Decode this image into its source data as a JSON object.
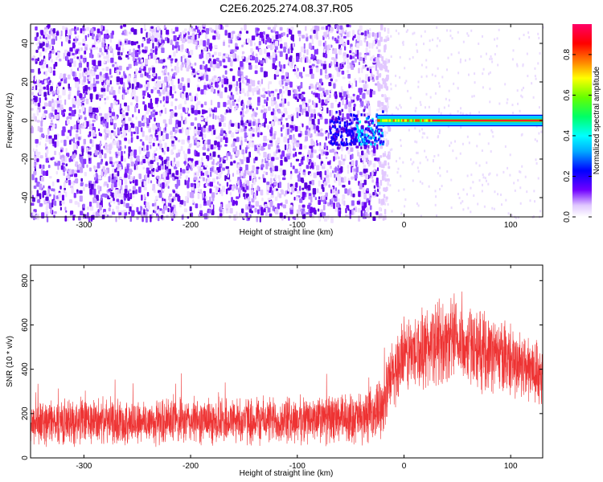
{
  "chart_data": [
    {
      "type": "heatmap",
      "title": "C2E6.2025.274.08.37.R05",
      "xlabel": "Height of straight line (km)",
      "ylabel": "Frequency (Hz)",
      "xlim": [
        -350,
        130
      ],
      "ylim": [
        -50,
        50
      ],
      "xticks": [
        -300,
        -200,
        -100,
        0,
        100
      ],
      "yticks": [
        -40,
        -20,
        0,
        20,
        40
      ],
      "xtick_labels": [
        "-300",
        "-200",
        "-100",
        "0",
        "100"
      ],
      "ytick_labels": [
        "-40",
        "-20",
        "0",
        "20",
        "40"
      ],
      "colorbar": {
        "label": "Normalized spectral amplitude",
        "range": [
          0.0,
          0.95
        ],
        "ticks": [
          0.0,
          0.2,
          0.4,
          0.6,
          0.8
        ],
        "tick_labels": [
          "0.0",
          "0.2",
          "0.4",
          "0.6",
          "0.8"
        ],
        "colors": [
          "#ffffff",
          "#6600cc",
          "#0000ff",
          "#00ffff",
          "#00ff00",
          "#ffff00",
          "#ff8800",
          "#ff0000",
          "#ff0066"
        ]
      },
      "features": [
        {
          "description": "broadband noise",
          "x_range": [
            -350,
            -25
          ],
          "freq_range": [
            -50,
            50
          ],
          "amplitude": 0.1
        },
        {
          "description": "transition burst",
          "x_range": [
            -70,
            -20
          ],
          "freq_range": [
            -12,
            8
          ],
          "amplitude": 0.3
        },
        {
          "description": "narrow carrier",
          "x_range": [
            -25,
            130
          ],
          "freq": 0,
          "freq_halfwidth": 3,
          "amplitude": 0.9
        }
      ]
    },
    {
      "type": "line",
      "xlabel": "Height of straight line (km)",
      "ylabel": "SNR (10 * v/v)",
      "xlim": [
        -350,
        130
      ],
      "ylim": [
        0,
        870
      ],
      "xticks": [
        -300,
        -200,
        -100,
        0,
        100
      ],
      "yticks": [
        0,
        200,
        400,
        600,
        800
      ],
      "xtick_labels": [
        "-300",
        "-200",
        "-100",
        "0",
        "100"
      ],
      "ytick_labels": [
        "0",
        "200",
        "400",
        "600",
        "800"
      ],
      "series": [
        {
          "name": "SNR",
          "color": "#ee3333",
          "x": [
            -350,
            -300,
            -250,
            -200,
            -150,
            -100,
            -60,
            -40,
            -30,
            -20,
            -10,
            0,
            20,
            40,
            60,
            80,
            100,
            120,
            130
          ],
          "mean": [
            160,
            165,
            160,
            165,
            170,
            170,
            175,
            180,
            190,
            250,
            380,
            460,
            500,
            530,
            510,
            480,
            440,
            400,
            370
          ],
          "spread": [
            120,
            120,
            120,
            120,
            125,
            125,
            130,
            135,
            140,
            160,
            190,
            200,
            210,
            220,
            210,
            200,
            190,
            180,
            170
          ]
        }
      ]
    }
  ]
}
